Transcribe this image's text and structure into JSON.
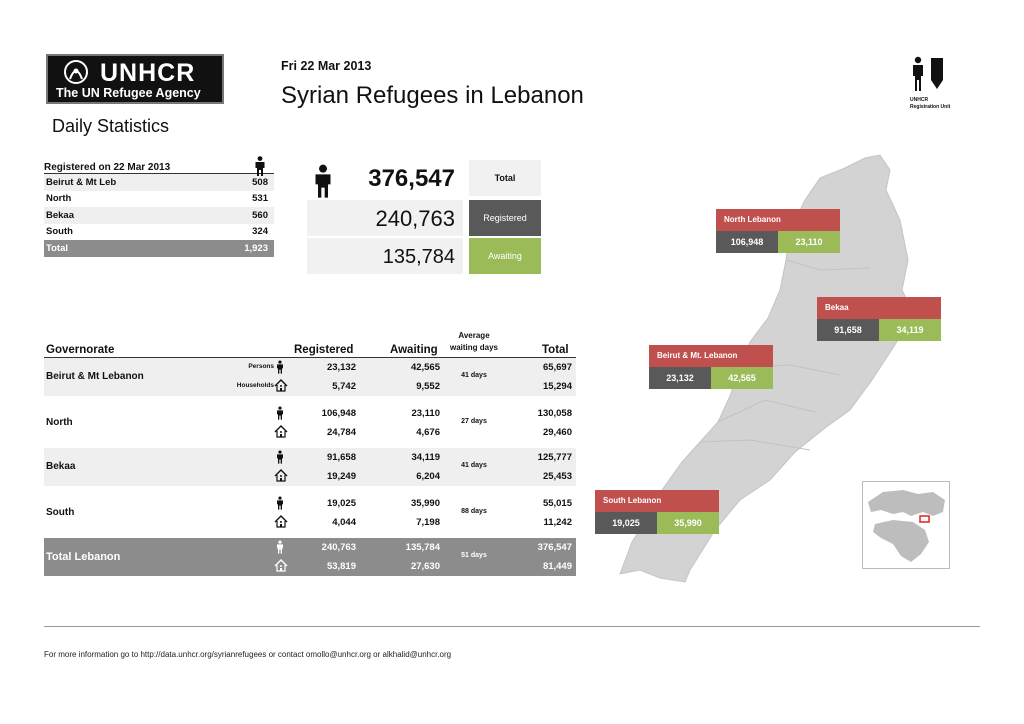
{
  "header": {
    "logo_name": "UNHCR",
    "logo_sub": "The UN Refugee Agency",
    "subtitle": "Daily Statistics",
    "date": "Fri 22 Mar 2013",
    "title": "Syrian Refugees in Lebanon",
    "unit_line1": "UNHCR",
    "unit_line2": "Registration Unit"
  },
  "reg_table": {
    "title": "Registered on 22 Mar 2013",
    "rows": [
      {
        "name": "Beirut & Mt Leb",
        "value": "508"
      },
      {
        "name": "North",
        "value": "531"
      },
      {
        "name": "Bekaa",
        "value": "560"
      },
      {
        "name": "South",
        "value": "324"
      }
    ],
    "total_label": "Total",
    "total_value": "1,923"
  },
  "summary": {
    "total": "376,547",
    "total_label": "Total",
    "registered": "240,763",
    "registered_label": "Registered",
    "awaiting": "135,784",
    "awaiting_label": "Awaiting"
  },
  "main_table": {
    "headers": {
      "governorate": "Governorate",
      "registered": "Registered",
      "awaiting": "Awaiting",
      "avg_line1": "Average",
      "avg_line2": "waiting days",
      "total": "Total"
    },
    "persons_label": "Persons",
    "households_label": "Households",
    "rows": [
      {
        "name": "Beirut & Mt Lebanon",
        "p_reg": "23,132",
        "h_reg": "5,742",
        "p_await": "42,565",
        "h_await": "9,552",
        "days": "41 days",
        "p_total": "65,697",
        "h_total": "15,294"
      },
      {
        "name": "North",
        "p_reg": "106,948",
        "h_reg": "24,784",
        "p_await": "23,110",
        "h_await": "4,676",
        "days": "27 days",
        "p_total": "130,058",
        "h_total": "29,460"
      },
      {
        "name": "Bekaa",
        "p_reg": "91,658",
        "h_reg": "19,249",
        "p_await": "34,119",
        "h_await": "6,204",
        "days": "41 days",
        "p_total": "125,777",
        "h_total": "25,453"
      },
      {
        "name": "South",
        "p_reg": "19,025",
        "h_reg": "4,044",
        "p_await": "35,990",
        "h_await": "7,198",
        "days": "88 days",
        "p_total": "55,015",
        "h_total": "11,242"
      },
      {
        "name": "Total Lebanon",
        "p_reg": "240,763",
        "h_reg": "53,819",
        "p_await": "135,784",
        "h_await": "27,630",
        "days": "51 days",
        "p_total": "376,547",
        "h_total": "81,449"
      }
    ]
  },
  "map": {
    "regions": [
      {
        "name": "North Lebanon",
        "registered": "106,948",
        "awaiting": "23,110"
      },
      {
        "name": "Bekaa",
        "registered": "91,658",
        "awaiting": "34,119"
      },
      {
        "name": "Beirut & Mt. Lebanon",
        "registered": "23,132",
        "awaiting": "42,565"
      },
      {
        "name": "South Lebanon",
        "registered": "19,025",
        "awaiting": "35,990"
      }
    ]
  },
  "footer": {
    "text": "For more information go to   http://data.unhcr.org/syrianrefugees   or contact  omollo@unhcr.org  or  alkhalid@unhcr.org"
  },
  "colors": {
    "region_header": "#c0504d",
    "registered": "#595959",
    "awaiting": "#9bbb59",
    "map_fill": "#d3d3d3",
    "total_row": "#8c8c8c"
  }
}
